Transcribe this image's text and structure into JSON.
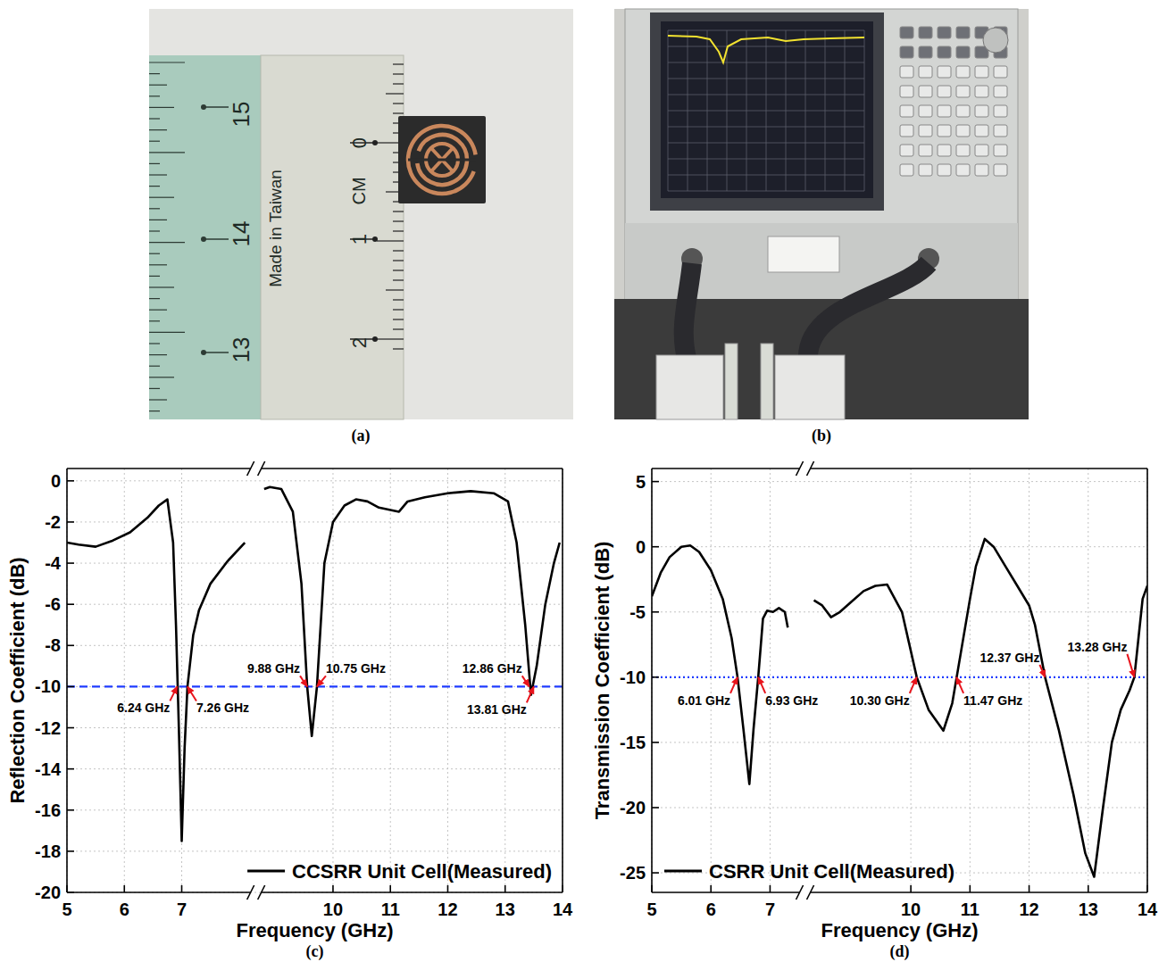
{
  "photos": {
    "a": {
      "label": "(a)",
      "ruler_texts": [
        "15",
        "14",
        "13",
        "Made in Taiwan",
        "0",
        "CM",
        "1",
        "2"
      ]
    },
    "b": {
      "label": "(b)"
    }
  },
  "chart_data": [
    {
      "type": "line",
      "panel_label": "(c)",
      "x_label": "Frequency (GHz)",
      "y_label": "Reflection Coefficient (dB)",
      "xlim": [
        5,
        14
      ],
      "x_break": [
        8.2,
        8.75
      ],
      "xticks": [
        5,
        6,
        7,
        10,
        11,
        12,
        13,
        14
      ],
      "ylim": [
        -20,
        0.6
      ],
      "yticks": [
        -20,
        -18,
        -16,
        -14,
        -12,
        -10,
        -8,
        -6,
        -4,
        -2,
        0
      ],
      "grid": true,
      "legend": "lower right",
      "threshold": {
        "value": -10,
        "color": "#1f3cff",
        "line_style": "dashed"
      },
      "series": [
        {
          "name": "CCSRR Unit Cell(Measured)",
          "color": "#000000",
          "x": [
            5.0,
            5.2,
            5.5,
            5.8,
            6.1,
            6.4,
            6.6,
            6.75,
            6.85,
            6.9,
            6.95,
            7.0,
            7.05,
            7.1,
            7.2,
            7.3,
            7.5,
            7.8,
            8.1,
            8.5,
            8.8,
            8.9,
            9.1,
            9.3,
            9.45,
            9.55,
            9.63,
            9.72,
            9.85,
            10.0,
            10.2,
            10.4,
            10.6,
            10.8,
            11.15,
            11.3,
            11.6,
            12.0,
            12.4,
            12.8,
            13.05,
            13.2,
            13.35,
            13.45,
            13.55,
            13.7,
            13.85,
            13.95
          ],
          "values": [
            -3.0,
            -3.1,
            -3.2,
            -2.9,
            -2.5,
            -1.8,
            -1.2,
            -0.9,
            -3.0,
            -7.0,
            -12.0,
            -17.5,
            -13.0,
            -10.0,
            -7.5,
            -6.3,
            -5.0,
            -3.9,
            -3.0,
            null,
            -0.4,
            -0.3,
            -0.4,
            -1.5,
            -5.0,
            -10.0,
            -12.4,
            -10.0,
            -4.0,
            -2.0,
            -1.2,
            -0.9,
            -1.0,
            -1.3,
            -1.5,
            -1.0,
            -0.8,
            -0.6,
            -0.5,
            -0.6,
            -1.0,
            -3.0,
            -7.0,
            -10.4,
            -9.0,
            -6.0,
            -4.0,
            -3.0
          ]
        }
      ],
      "annotations": [
        {
          "text": "6.24 GHz",
          "x": 6.92,
          "y": -10
        },
        {
          "text": "7.26 GHz",
          "x": 7.1,
          "y": -10
        },
        {
          "text": "9.88 GHz",
          "x": 9.55,
          "y": -10
        },
        {
          "text": "10.75 GHz",
          "x": 9.72,
          "y": -10
        },
        {
          "text": "12.86 GHz",
          "x": 13.42,
          "y": -10
        },
        {
          "text": "13.81 GHz",
          "x": 13.5,
          "y": -10
        }
      ]
    },
    {
      "type": "line",
      "panel_label": "(d)",
      "x_label": "Frequency (GHz)",
      "y_label": "Transmission Coefficient (dB)",
      "xlim": [
        5,
        14
      ],
      "x_break": [
        7.5,
        8.3
      ],
      "xticks": [
        5,
        6,
        7,
        10,
        11,
        12,
        13,
        14
      ],
      "ylim": [
        -26.5,
        6
      ],
      "yticks": [
        -25,
        -20,
        -15,
        -10,
        -5,
        0,
        5
      ],
      "grid": true,
      "legend": "lower left",
      "threshold": {
        "value": -10,
        "color": "#1f3cff",
        "line_style": "dotted"
      },
      "series": [
        {
          "name": "CSRR Unit Cell(Measured)",
          "color": "#000000",
          "x": [
            5.0,
            5.15,
            5.3,
            5.5,
            5.65,
            5.8,
            6.0,
            6.2,
            6.35,
            6.45,
            6.55,
            6.65,
            6.72,
            6.8,
            6.88,
            6.95,
            7.05,
            7.15,
            7.25,
            7.3,
            7.9,
            8.36,
            8.5,
            8.65,
            8.8,
            9.0,
            9.2,
            9.4,
            9.6,
            9.85,
            10.1,
            10.3,
            10.55,
            10.7,
            10.85,
            11.0,
            11.1,
            11.25,
            11.4,
            11.6,
            11.8,
            12.0,
            12.1,
            12.27,
            12.5,
            12.75,
            12.95,
            13.1,
            13.25,
            13.4,
            13.55,
            13.7,
            13.78,
            13.85,
            13.92,
            14.0
          ],
          "values": [
            -3.8,
            -2.0,
            -0.8,
            0.0,
            0.1,
            -0.4,
            -1.8,
            -4.0,
            -7.0,
            -10.0,
            -14.0,
            -18.2,
            -14.0,
            -10.0,
            -5.5,
            -4.9,
            -5.0,
            -4.7,
            -5.0,
            -6.2,
            null,
            -4.1,
            -4.5,
            -5.4,
            -5.0,
            -4.2,
            -3.4,
            -3.0,
            -2.9,
            -5.0,
            -10.0,
            -12.5,
            -14.1,
            -12.0,
            -8.0,
            -4.0,
            -1.5,
            0.6,
            0.0,
            -1.5,
            -3.0,
            -4.5,
            -6.0,
            -10.0,
            -14.0,
            -19.0,
            -23.5,
            -25.3,
            -20.0,
            -15.0,
            -12.5,
            -11.0,
            -10.0,
            -7.0,
            -4.0,
            -3.0
          ]
        }
      ],
      "annotations": [
        {
          "text": "6.01 GHz",
          "x": 6.45,
          "y": -10
        },
        {
          "text": "6.93 GHz",
          "x": 6.8,
          "y": -10
        },
        {
          "text": "10.30 GHz",
          "x": 10.1,
          "y": -10
        },
        {
          "text": "11.47 GHz",
          "x": 10.77,
          "y": -10
        },
        {
          "text": "12.37 GHz",
          "x": 12.27,
          "y": -10
        },
        {
          "text": "13.28 GHz",
          "x": 13.78,
          "y": -10
        }
      ]
    }
  ]
}
